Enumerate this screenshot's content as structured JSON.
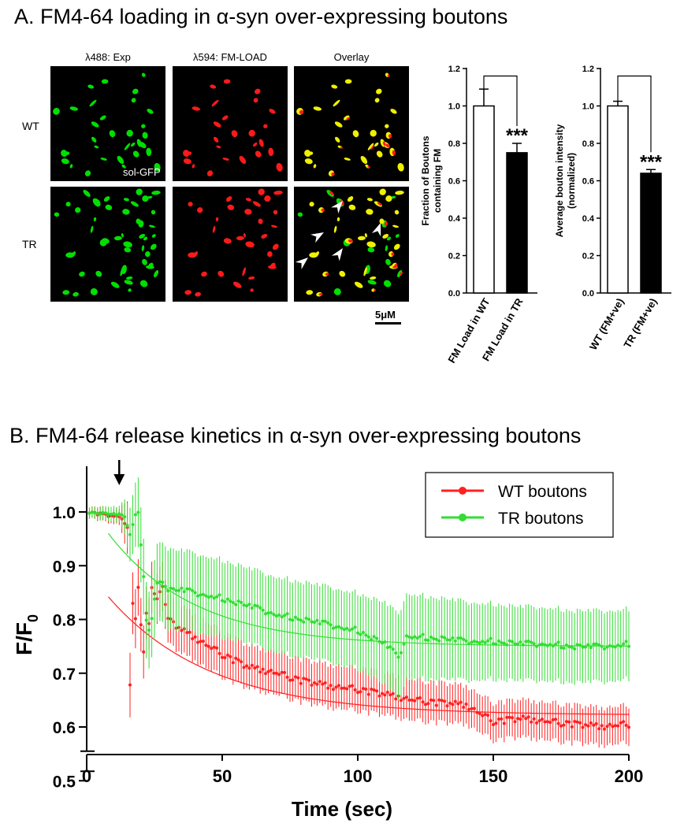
{
  "panel_a": {
    "title": "A. FM4-64 loading in α-syn over-expressing boutons",
    "columns": [
      "λ488: Exp",
      "λ594: FM-LOAD",
      "Overlay"
    ],
    "rows": [
      "WT",
      "TR"
    ],
    "inset_label": "sol-GFP",
    "scale_bar_label": "5μM",
    "colors": {
      "exp": "#00e000",
      "fm": "#ff1a1a",
      "overlay": "#f0f000",
      "arrowhead": "#ffffff"
    }
  },
  "chart_data": [
    {
      "type": "bar",
      "ylabel": "Fraction of Boutons\ncontaining FM",
      "categories": [
        "FM Load in WT",
        "FM Load in TR"
      ],
      "values": [
        1.0,
        0.75
      ],
      "errors": [
        0.09,
        0.05
      ],
      "ylim": [
        0,
        1.2
      ],
      "yticks": [
        "0.0",
        "0.2",
        "0.4",
        "0.6",
        "0.8",
        "1.0",
        "1.2"
      ],
      "bar_fill": [
        "#ffffff",
        "#000000"
      ],
      "significance": "***"
    },
    {
      "type": "bar",
      "ylabel": "Average bouton intensity\n(normalized)",
      "categories": [
        "WT (FM+ve)",
        "TR (FM+ve)"
      ],
      "values": [
        1.0,
        0.64
      ],
      "errors": [
        0.025,
        0.02
      ],
      "ylim": [
        0,
        1.2
      ],
      "yticks": [
        "0.0",
        "0.2",
        "0.4",
        "0.6",
        "0.8",
        "1.0",
        "1.2"
      ],
      "bar_fill": [
        "#ffffff",
        "#000000"
      ],
      "significance": "***"
    },
    {
      "type": "line",
      "title": "B. FM4-64 release kinetics in α-syn over-expressing boutons",
      "xlabel": "Time (sec)",
      "ylabel_main": "F/F",
      "ylabel_sub": "0",
      "xlim": [
        0,
        200
      ],
      "xticks": [
        "0",
        "50",
        "100",
        "150",
        "200"
      ],
      "yticks": [
        "0.5",
        "0.6",
        "0.7",
        "0.8",
        "0.9",
        "1.0"
      ],
      "axis_break": true,
      "stimulus_time": 12,
      "legend_position": "top-right",
      "series": [
        {
          "name": "WT boutons",
          "color": "#ff2020",
          "fit": {
            "start": 8,
            "plateau": 0.622,
            "amplitude": 0.22,
            "tau": 38
          },
          "keypoints": [
            [
              0,
              1.0
            ],
            [
              12,
              0.99
            ],
            [
              14,
              0.98
            ],
            [
              15,
              0.97
            ],
            [
              16,
              0.68
            ],
            [
              17,
              0.83
            ],
            [
              18,
              0.8
            ],
            [
              19,
              0.86
            ],
            [
              20,
              0.79
            ],
            [
              21,
              0.74
            ],
            [
              22,
              0.81
            ],
            [
              23,
              0.79
            ],
            [
              24,
              0.86
            ],
            [
              26,
              0.84
            ],
            [
              28,
              0.86
            ],
            [
              30,
              0.8
            ],
            [
              35,
              0.78
            ],
            [
              40,
              0.765
            ],
            [
              50,
              0.735
            ],
            [
              60,
              0.71
            ],
            [
              70,
              0.7
            ],
            [
              80,
              0.685
            ],
            [
              90,
              0.675
            ],
            [
              100,
              0.67
            ],
            [
              110,
              0.66
            ],
            [
              120,
              0.65
            ],
            [
              130,
              0.645
            ],
            [
              140,
              0.64
            ],
            [
              145,
              0.625
            ],
            [
              150,
              0.61
            ],
            [
              160,
              0.615
            ],
            [
              170,
              0.61
            ],
            [
              180,
              0.605
            ],
            [
              190,
              0.6
            ],
            [
              200,
              0.605
            ]
          ],
          "error_keypoints": [
            [
              0,
              0.01
            ],
            [
              12,
              0.015
            ],
            [
              16,
              0.06
            ],
            [
              20,
              0.05
            ],
            [
              30,
              0.045
            ],
            [
              60,
              0.04
            ],
            [
              100,
              0.04
            ],
            [
              150,
              0.035
            ],
            [
              200,
              0.035
            ]
          ]
        },
        {
          "name": "TR boutons",
          "color": "#33dd33",
          "fit": {
            "start": 8,
            "plateau": 0.75,
            "amplitude": 0.21,
            "tau": 32
          },
          "keypoints": [
            [
              0,
              1.0
            ],
            [
              12,
              0.995
            ],
            [
              14,
              0.99
            ],
            [
              16,
              0.96
            ],
            [
              18,
              0.995
            ],
            [
              19,
              1.0
            ],
            [
              20,
              0.94
            ],
            [
              21,
              0.88
            ],
            [
              22,
              0.8
            ],
            [
              23,
              0.78
            ],
            [
              24,
              0.8
            ],
            [
              25,
              0.84
            ],
            [
              26,
              0.87
            ],
            [
              28,
              0.87
            ],
            [
              30,
              0.855
            ],
            [
              35,
              0.855
            ],
            [
              40,
              0.85
            ],
            [
              50,
              0.84
            ],
            [
              60,
              0.825
            ],
            [
              70,
              0.81
            ],
            [
              80,
              0.8
            ],
            [
              90,
              0.79
            ],
            [
              100,
              0.78
            ],
            [
              110,
              0.755
            ],
            [
              115,
              0.73
            ],
            [
              118,
              0.77
            ],
            [
              130,
              0.765
            ],
            [
              140,
              0.76
            ],
            [
              150,
              0.76
            ],
            [
              160,
              0.755
            ],
            [
              170,
              0.755
            ],
            [
              180,
              0.75
            ],
            [
              190,
              0.75
            ],
            [
              200,
              0.755
            ]
          ],
          "error_keypoints": [
            [
              0,
              0.01
            ],
            [
              12,
              0.015
            ],
            [
              16,
              0.05
            ],
            [
              20,
              0.07
            ],
            [
              30,
              0.075
            ],
            [
              60,
              0.07
            ],
            [
              100,
              0.07
            ],
            [
              115,
              0.08
            ],
            [
              150,
              0.07
            ],
            [
              200,
              0.065
            ]
          ]
        }
      ]
    }
  ]
}
